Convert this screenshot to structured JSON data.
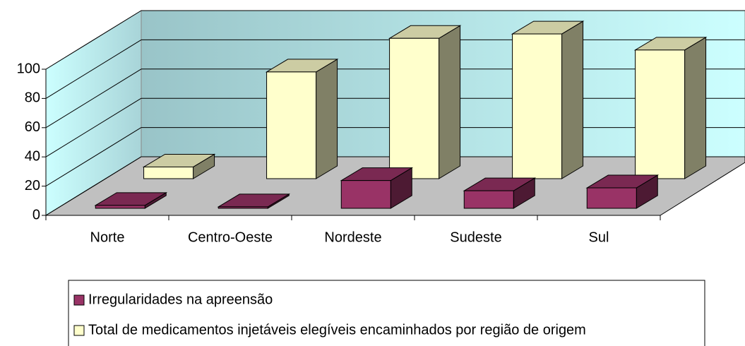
{
  "chart_data": {
    "type": "bar3d",
    "categories": [
      "Norte",
      "Centro-Oeste",
      "Nordeste",
      "Sudeste",
      "Sul"
    ],
    "series": [
      {
        "name": "Irregularidades na apreensão",
        "color": "#993366",
        "values": [
          2,
          1,
          19,
          12,
          14
        ]
      },
      {
        "name": "Total de medicamentos injetáveis elegíveis encaminhados por região de origem",
        "color": "#ffffcc",
        "values": [
          8,
          73,
          96,
          99,
          88
        ]
      }
    ],
    "ylim": [
      0,
      100
    ],
    "yticks": [
      0,
      20,
      40,
      60,
      80,
      100
    ],
    "grid": true
  }
}
